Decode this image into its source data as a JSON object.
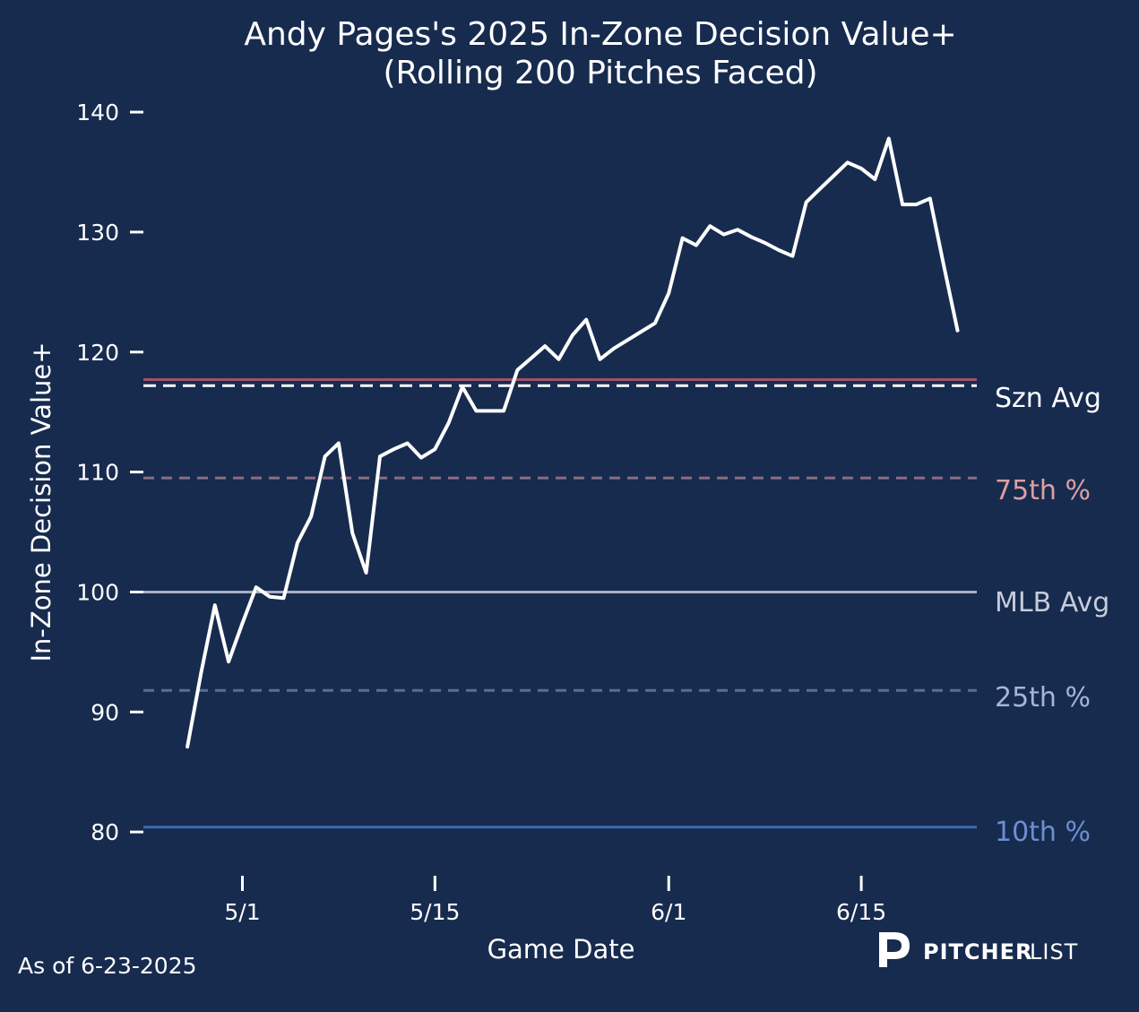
{
  "chart_data": {
    "type": "line",
    "title_line1": "Andy Pages's 2025 In-Zone Decision Value+",
    "title_line2": "(Rolling 200 Pitches Faced)",
    "xlabel": "Game Date",
    "ylabel": "In-Zone Decision Value+",
    "ylim": [
      76.5,
      141.5
    ],
    "yticks": [
      80,
      90,
      100,
      110,
      120,
      130,
      140
    ],
    "ytick_labels": [
      "80",
      "90",
      "100",
      "110",
      "120",
      "130",
      "140"
    ],
    "xlim": [
      -7.2,
      53.4
    ],
    "xticks": [
      0,
      14,
      31,
      45
    ],
    "xtick_labels": [
      "5/1",
      "5/15",
      "6/1",
      "6/15"
    ],
    "grid": false,
    "series": [
      {
        "name": "Andy Pages",
        "color": "#ffffff",
        "points": [
          [
            -4.0,
            87.1
          ],
          [
            -3.0,
            93.3
          ],
          [
            -2.0,
            98.9
          ],
          [
            -1.0,
            94.2
          ],
          [
            0.0,
            97.4
          ],
          [
            1.0,
            100.4
          ],
          [
            2.0,
            99.6
          ],
          [
            3.0,
            99.5
          ],
          [
            4.0,
            104.1
          ],
          [
            5.0,
            106.3
          ],
          [
            6.0,
            111.3
          ],
          [
            7.0,
            112.4
          ],
          [
            8.0,
            104.9
          ],
          [
            9.0,
            101.6
          ],
          [
            10.0,
            111.3
          ],
          [
            11.0,
            111.9
          ],
          [
            12.0,
            112.4
          ],
          [
            13.0,
            111.2
          ],
          [
            14.0,
            111.9
          ],
          [
            15.0,
            114.1
          ],
          [
            16.0,
            117.1
          ],
          [
            17.0,
            115.1
          ],
          [
            18.0,
            115.1
          ],
          [
            19.0,
            115.1
          ],
          [
            20.0,
            118.5
          ],
          [
            21.0,
            119.5
          ],
          [
            22.0,
            120.5
          ],
          [
            23.0,
            119.4
          ],
          [
            24.0,
            121.4
          ],
          [
            25.0,
            122.7
          ],
          [
            26.0,
            119.4
          ],
          [
            27.0,
            120.3
          ],
          [
            28.0,
            121.0
          ],
          [
            29.0,
            121.7
          ],
          [
            30.0,
            122.4
          ],
          [
            31.0,
            124.9
          ],
          [
            32.0,
            129.5
          ],
          [
            33.0,
            128.9
          ],
          [
            34.0,
            130.5
          ],
          [
            35.0,
            129.8
          ],
          [
            36.0,
            130.2
          ],
          [
            37.0,
            129.6
          ],
          [
            38.0,
            129.1
          ],
          [
            39.0,
            128.5
          ],
          [
            40.0,
            128.0
          ],
          [
            41.0,
            132.5
          ],
          [
            42.0,
            133.6
          ],
          [
            43.0,
            134.7
          ],
          [
            44.0,
            135.8
          ],
          [
            45.0,
            135.3
          ],
          [
            46.0,
            134.4
          ],
          [
            47.0,
            137.8
          ],
          [
            48.0,
            132.3
          ],
          [
            49.0,
            132.3
          ],
          [
            50.0,
            132.8
          ],
          [
            51.0,
            127.2
          ],
          [
            52.0,
            121.8
          ]
        ]
      }
    ],
    "reference_lines": [
      {
        "name": "Szn Avg",
        "value": 117.2,
        "color": "#ffffff",
        "style": "dashed",
        "label_color": "#ffffff"
      },
      {
        "name": "Szn Avg band",
        "value": 117.7,
        "color": "#a0526a",
        "style": "solid",
        "label_color": ""
      },
      {
        "name": "75th %",
        "value": 109.5,
        "color": "#8c6c84",
        "style": "dashed",
        "label_color": "#dca0a2"
      },
      {
        "name": "MLB Avg",
        "value": 100.0,
        "color": "#a6b0c2",
        "style": "solid",
        "label_color": "#c6ccda"
      },
      {
        "name": "25th %",
        "value": 91.8,
        "color": "#5a6e95",
        "style": "dashed",
        "label_color": "#a4b6d6"
      },
      {
        "name": "10th %",
        "value": 80.4,
        "color": "#3d6ab4",
        "style": "solid",
        "label_color": "#6d8fcf"
      }
    ],
    "reference_labels": {
      "szn_avg": "Szn Avg",
      "p75": "75th %",
      "mlb_avg": "MLB Avg",
      "p25": "25th %",
      "p10": "10th %"
    },
    "footnote": "As of 6-23-2025"
  },
  "logo": {
    "icon": "pitcherlist-p-icon",
    "word_bold": "PITCHER",
    "word_light": "LIST"
  }
}
